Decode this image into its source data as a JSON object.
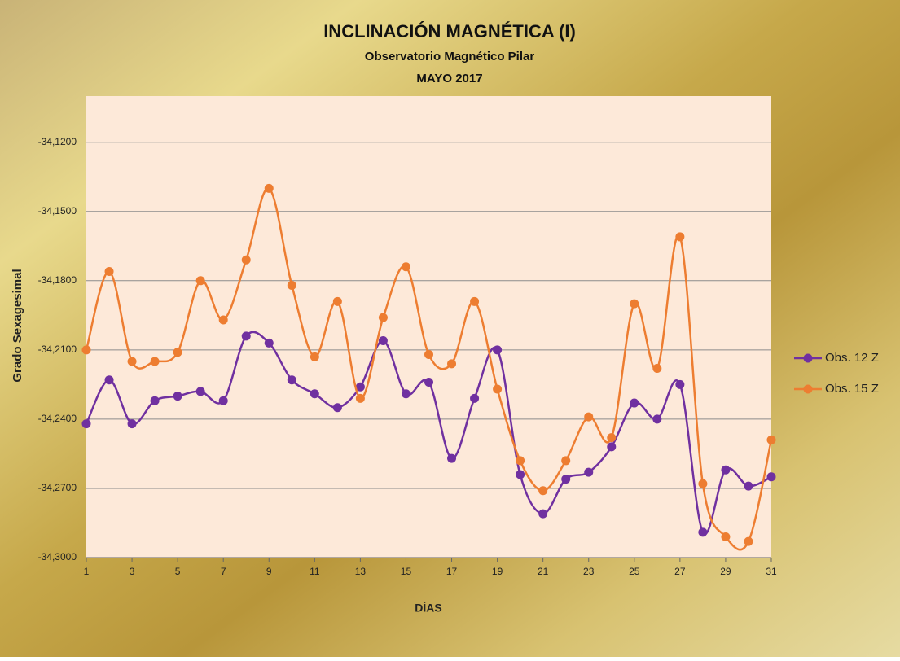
{
  "chart_data": {
    "type": "line",
    "title": "INCLINACIÓN MAGNÉTICA (I)",
    "subtitle": "Observatorio Magnético Pilar",
    "subtitle2": "MAYO 2017",
    "x_label": "DÍAS",
    "y_label": "Grado Sexagesimal",
    "x": [
      1,
      2,
      3,
      4,
      5,
      6,
      7,
      8,
      9,
      10,
      11,
      12,
      13,
      14,
      15,
      16,
      17,
      18,
      19,
      20,
      21,
      22,
      23,
      24,
      25,
      26,
      27,
      28,
      29,
      30,
      31
    ],
    "xlim": [
      1,
      31
    ],
    "xticks": [
      1,
      3,
      5,
      7,
      9,
      11,
      13,
      15,
      17,
      19,
      21,
      23,
      25,
      27,
      29,
      31
    ],
    "ylim": [
      -34.3,
      -34.1
    ],
    "yticks": [
      {
        "value": -34.3,
        "label": "-34,3000"
      },
      {
        "value": -34.27,
        "label": "-34,2700"
      },
      {
        "value": -34.24,
        "label": "-34,2400"
      },
      {
        "value": -34.21,
        "label": "-34,2100"
      },
      {
        "value": -34.18,
        "label": "-34,1800"
      },
      {
        "value": -34.15,
        "label": "-34,1500"
      },
      {
        "value": -34.12,
        "label": "-34,1200"
      }
    ],
    "grid": true,
    "smooth": true,
    "legend_position": "right",
    "series": [
      {
        "name": "Obs. 12 Z",
        "color": "#7030a0",
        "values": [
          -34.242,
          -34.223,
          -34.242,
          -34.232,
          -34.23,
          -34.228,
          -34.232,
          -34.204,
          -34.207,
          -34.223,
          -34.229,
          -34.235,
          -34.226,
          -34.206,
          -34.229,
          -34.224,
          -34.257,
          -34.231,
          -34.21,
          -34.264,
          -34.281,
          -34.266,
          -34.263,
          -34.252,
          -34.233,
          -34.24,
          -34.225,
          -34.289,
          -34.262,
          -34.269,
          -34.265
        ]
      },
      {
        "name": "Obs. 15 Z",
        "color": "#ed7d31",
        "values": [
          -34.21,
          -34.176,
          -34.215,
          -34.215,
          -34.211,
          -34.18,
          -34.197,
          -34.171,
          -34.14,
          -34.182,
          -34.213,
          -34.189,
          -34.231,
          -34.196,
          -34.174,
          -34.212,
          -34.216,
          -34.189,
          -34.227,
          -34.258,
          -34.271,
          -34.258,
          -34.239,
          -34.248,
          -34.19,
          -34.218,
          -34.161,
          -34.268,
          -34.291,
          -34.293,
          -34.249
        ]
      }
    ]
  }
}
